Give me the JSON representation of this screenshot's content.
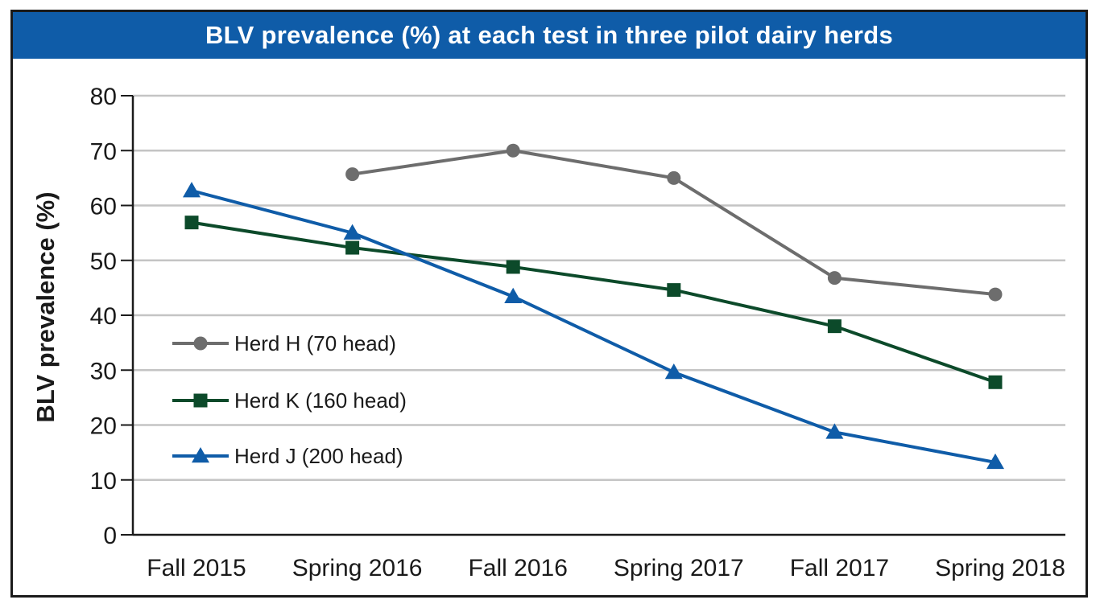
{
  "chart_data": {
    "type": "line",
    "title": "BLV prevalence (%) at each test in three pilot dairy herds",
    "ylabel": "BLV prevalence (%)",
    "xlabel": "",
    "ylim": [
      0,
      80
    ],
    "yticks": [
      "0",
      "10",
      "20",
      "30",
      "40",
      "50",
      "60",
      "70",
      "80"
    ],
    "categories": [
      "Fall 2015",
      "Spring 2016",
      "Fall 2016",
      "Spring 2017",
      "Fall 2017",
      "Spring 2018"
    ],
    "grid": true,
    "legend_position": "left",
    "series": [
      {
        "name": "Herd H (70 head)",
        "color": "#6d6d6d",
        "marker": "circle",
        "values": [
          null,
          65.7,
          70,
          65,
          46.8,
          43.8
        ]
      },
      {
        "name": "Herd K (160 head)",
        "color": "#0c4a2a",
        "marker": "square",
        "values": [
          56.9,
          52.3,
          48.8,
          44.6,
          38,
          27.8
        ]
      },
      {
        "name": "Herd J (200 head)",
        "color": "#0f5ca8",
        "marker": "triangle",
        "values": [
          62.7,
          55,
          43.4,
          29.6,
          18.7,
          13.2
        ]
      }
    ]
  }
}
